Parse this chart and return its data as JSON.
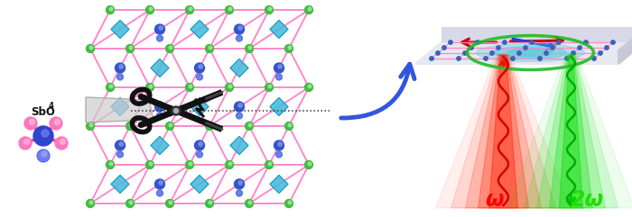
{
  "fig_width": 7.0,
  "fig_height": 2.41,
  "dpi": 100,
  "bg_color": "#ffffff",
  "omega_label": "ω",
  "two_omega_label": "2ω",
  "omega_color": "#ff0000",
  "two_omega_color": "#22dd00",
  "sbo4_label": "SbO",
  "sbo4_sub": "4",
  "arrow_color": "#3355dd",
  "pink_bond": "#ff88cc",
  "green_node": "#44bb44",
  "blue_node": "#3366dd",
  "cyan_oct": "#44bbdd",
  "scissors_color": "#111111"
}
